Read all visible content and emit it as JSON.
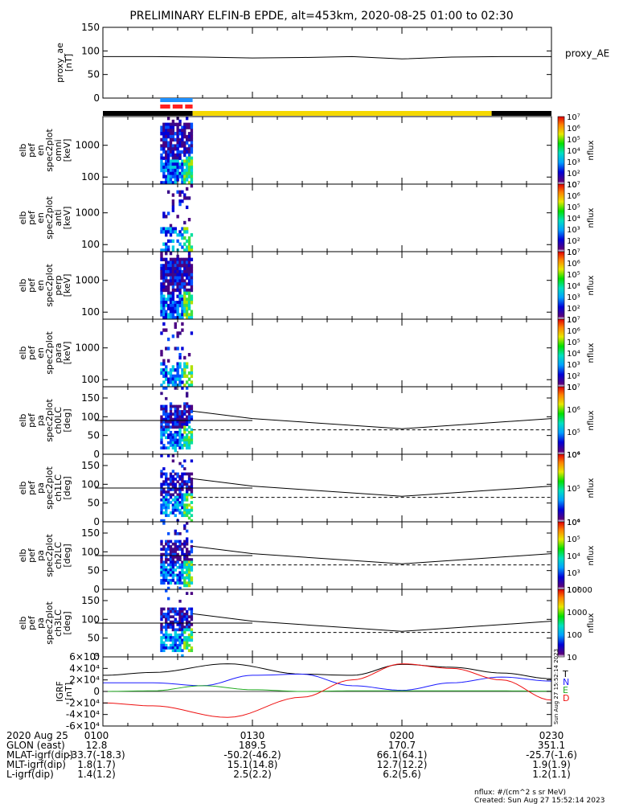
{
  "title": "PRELIMINARY ELFIN-B EPDE, alt=453km, 2020-08-25 01:00 to 02:30",
  "colors": {
    "blue": "#1e90ff",
    "red": "#ff2020",
    "yellow": "#f5d800",
    "black": "#000000",
    "mag_T": "#000000",
    "mag_N": "#1a1aff",
    "mag_E": "#22aa22",
    "mag_D": "#ee1111"
  },
  "chart_data": [
    {
      "type": "line",
      "name": "proxy_ae",
      "ylabel_lines": [
        "proxy_ae",
        "[nT]"
      ],
      "legend": "proxy_AE",
      "ylim": [
        0,
        150
      ],
      "yticks": [
        "0",
        "50",
        "100",
        "150"
      ],
      "x_minutes": [
        0,
        10,
        20,
        30,
        40,
        50,
        60,
        70,
        80,
        90
      ],
      "y": [
        88,
        88,
        87,
        85,
        86,
        88,
        83,
        87,
        88,
        88
      ]
    },
    {
      "type": "bar-strip",
      "name": "status_bars",
      "rows": [
        {
          "segments": [
            {
              "start": 11.5,
              "end": 18,
              "color": "blue"
            }
          ]
        },
        {
          "segments": [
            {
              "start": 11.5,
              "end": 13.5,
              "color": "red"
            },
            {
              "start": 14,
              "end": 16,
              "color": "red"
            },
            {
              "start": 16.5,
              "end": 18,
              "color": "red"
            }
          ]
        },
        {
          "segments": [
            {
              "start": 0,
              "end": 18,
              "color": "black"
            },
            {
              "start": 18,
              "end": 78,
              "color": "yellow"
            },
            {
              "start": 78,
              "end": 90,
              "color": "black"
            }
          ]
        }
      ]
    },
    {
      "type": "heatmap",
      "name": "elb_pef_en_spec2plot_omni",
      "ylabel_lines": [
        "elb",
        "pef",
        "en",
        "spec2plot",
        "omni",
        "[keV]"
      ],
      "yscale": "log",
      "ylim": [
        60,
        8000
      ],
      "yticks": [
        "100",
        "1000"
      ],
      "x_range_minutes": [
        11.5,
        18
      ],
      "colorbar": {
        "label": "nflux",
        "scale": "log",
        "ticks": [
          "10",
          "10²",
          "10³",
          "10⁴",
          "10⁵",
          "10⁶",
          "10⁷"
        ]
      }
    },
    {
      "type": "heatmap",
      "name": "elb_pef_en_spec2plot_anti",
      "ylabel_lines": [
        "elb",
        "pef",
        "en",
        "spec2plot",
        "anti",
        "[keV]"
      ],
      "yscale": "log",
      "ylim": [
        60,
        8000
      ],
      "yticks": [
        "100",
        "1000"
      ],
      "x_range_minutes": [
        11.5,
        18
      ],
      "colorbar": {
        "label": "nflux",
        "scale": "log",
        "ticks": [
          "10",
          "10²",
          "10³",
          "10⁴",
          "10⁵",
          "10⁶",
          "10⁷"
        ]
      }
    },
    {
      "type": "heatmap",
      "name": "elb_pef_en_spec2plot_perp",
      "ylabel_lines": [
        "elb",
        "pef",
        "en",
        "spec2plot",
        "perp",
        "[keV]"
      ],
      "yscale": "log",
      "ylim": [
        60,
        8000
      ],
      "yticks": [
        "100",
        "1000"
      ],
      "x_range_minutes": [
        11.5,
        18
      ],
      "colorbar": {
        "label": "nflux",
        "scale": "log",
        "ticks": [
          "10",
          "10²",
          "10³",
          "10⁴",
          "10⁵",
          "10⁶",
          "10⁷"
        ]
      }
    },
    {
      "type": "heatmap",
      "name": "elb_pef_en_spec2plot_para",
      "ylabel_lines": [
        "elb",
        "pef",
        "en",
        "spec2plot",
        "para",
        "[keV]"
      ],
      "yscale": "log",
      "ylim": [
        60,
        8000
      ],
      "yticks": [
        "100",
        "1000"
      ],
      "x_range_minutes": [
        11.5,
        18
      ],
      "colorbar": {
        "label": "nflux",
        "scale": "log",
        "ticks": [
          "10",
          "10²",
          "10³",
          "10⁴",
          "10⁵",
          "10⁶",
          "10⁷"
        ]
      }
    },
    {
      "type": "heatmap",
      "name": "elb_pef_pa_spec2plot_ch0LC",
      "ylabel_lines": [
        "elb",
        "pef",
        "pa",
        "spec2plot",
        "ch0LC",
        "[deg]"
      ],
      "ylim": [
        0,
        180
      ],
      "yticks": [
        "0",
        "50",
        "100",
        "150"
      ],
      "x_range_minutes": [
        11.5,
        18
      ],
      "colorbar": {
        "label": "nflux",
        "scale": "log",
        "ticks": [
          "10⁴",
          "10⁵",
          "10⁶",
          "10⁷"
        ]
      },
      "loss_cone_solid": {
        "x_minutes": [
          18,
          30,
          60,
          90
        ],
        "y": [
          115,
          95,
          68,
          95
        ]
      },
      "loss_cone_dashed": {
        "x_minutes": [
          18,
          90
        ],
        "y": [
          65,
          65
        ]
      },
      "hline": 90
    },
    {
      "type": "heatmap",
      "name": "elb_pef_pa_spec2plot_ch1LC",
      "ylabel_lines": [
        "elb",
        "pef",
        "pa",
        "spec2plot",
        "ch1LC",
        "[deg]"
      ],
      "ylim": [
        0,
        180
      ],
      "yticks": [
        "0",
        "50",
        "100",
        "150"
      ],
      "x_range_minutes": [
        11.5,
        18
      ],
      "colorbar": {
        "label": "nflux",
        "scale": "log",
        "ticks": [
          "10⁴",
          "10⁵",
          "10⁶"
        ]
      },
      "loss_cone_solid": {
        "x_minutes": [
          18,
          30,
          60,
          90
        ],
        "y": [
          115,
          95,
          68,
          95
        ]
      },
      "loss_cone_dashed": {
        "x_minutes": [
          18,
          90
        ],
        "y": [
          65,
          65
        ]
      },
      "hline": 90
    },
    {
      "type": "heatmap",
      "name": "elb_pef_pa_spec2plot_ch2LC",
      "ylabel_lines": [
        "elb",
        "pef",
        "pa",
        "spec2plot",
        "ch2LC",
        "[deg]"
      ],
      "ylim": [
        0,
        180
      ],
      "yticks": [
        "0",
        "50",
        "100",
        "150"
      ],
      "x_range_minutes": [
        11.5,
        18
      ],
      "colorbar": {
        "label": "nflux",
        "scale": "log",
        "ticks": [
          "10²",
          "10³",
          "10⁴",
          "10⁵",
          "10⁶"
        ]
      },
      "loss_cone_solid": {
        "x_minutes": [
          18,
          30,
          60,
          90
        ],
        "y": [
          115,
          95,
          68,
          95
        ]
      },
      "loss_cone_dashed": {
        "x_minutes": [
          18,
          90
        ],
        "y": [
          65,
          65
        ]
      },
      "hline": 90
    },
    {
      "type": "heatmap",
      "name": "elb_pef_pa_spec2plot_ch3LC",
      "ylabel_lines": [
        "elb",
        "pef",
        "pa",
        "spec2plot",
        "ch3LC",
        "[deg]"
      ],
      "ylim": [
        0,
        180
      ],
      "yticks": [
        "0",
        "50",
        "100",
        "150"
      ],
      "x_range_minutes": [
        11.5,
        18
      ],
      "colorbar": {
        "label": "nflux",
        "scale": "log",
        "ticks": [
          "10",
          "100",
          "1000",
          "10000"
        ]
      },
      "loss_cone_solid": {
        "x_minutes": [
          18,
          30,
          60,
          90
        ],
        "y": [
          115,
          95,
          68,
          95
        ]
      },
      "loss_cone_dashed": {
        "x_minutes": [
          18,
          90
        ],
        "y": [
          65,
          65
        ]
      },
      "hline": 90
    },
    {
      "type": "line",
      "name": "IGRF",
      "ylabel_lines": [
        "IGRF",
        "[nT]"
      ],
      "ylim": [
        -60000,
        60000
      ],
      "yticks": [
        "-6×10⁴",
        "-4×10⁴",
        "-2×10⁴",
        "0",
        "2×10⁴",
        "4×10⁴",
        "6×10⁴"
      ],
      "series": [
        {
          "name": "T",
          "color": "mag_T",
          "x_minutes": [
            0,
            10,
            25,
            40,
            50,
            60,
            70,
            80,
            90
          ],
          "y": [
            28000,
            33000,
            48000,
            30000,
            28000,
            47000,
            42000,
            32000,
            22000
          ]
        },
        {
          "name": "N",
          "color": "mag_N",
          "x_minutes": [
            0,
            10,
            20,
            30,
            40,
            50,
            60,
            70,
            80,
            90
          ],
          "y": [
            15000,
            15000,
            10000,
            28000,
            30000,
            10000,
            2000,
            15000,
            25000,
            18000
          ]
        },
        {
          "name": "E",
          "color": "mag_E",
          "x_minutes": [
            0,
            10,
            20,
            30,
            40,
            50,
            60,
            70,
            80,
            90
          ],
          "y": [
            0,
            1000,
            10000,
            3000,
            0,
            1000,
            1000,
            1000,
            1000,
            500
          ]
        },
        {
          "name": "D",
          "color": "mag_D",
          "x_minutes": [
            0,
            10,
            25,
            40,
            50,
            60,
            70,
            80,
            90
          ],
          "y": [
            -20000,
            -25000,
            -45000,
            -10000,
            20000,
            48000,
            40000,
            20000,
            -15000
          ]
        }
      ],
      "annotation": "Sun Aug 27 15:52:14 2023"
    }
  ],
  "xaxis": {
    "tick_minutes": [
      0,
      30,
      60,
      90
    ],
    "tick_labels": [
      "0100",
      "0130",
      "0200",
      "0230"
    ],
    "rows": [
      {
        "label": "2020 Aug 25",
        "values": [
          "0100",
          "0130",
          "0200",
          "0230"
        ]
      },
      {
        "label": "GLON (east)",
        "values": [
          "12.8",
          "189.5",
          "170.7",
          "351.1"
        ]
      },
      {
        "label": "MLAT-igrf(dip)",
        "values": [
          "-33.7(-18.3)",
          "-50.2(-46.2)",
          "66.1(64.1)",
          "-25.7(-1.6)"
        ]
      },
      {
        "label": "MLT-igrf(dip)",
        "values": [
          "1.8(1.7)",
          "15.1(14.8)",
          "12.7(12.2)",
          "1.9(1.9)"
        ]
      },
      {
        "label": "L-igrf(dip)",
        "values": [
          "1.4(1.2)",
          "2.5(2.2)",
          "6.2(5.6)",
          "1.2(1.1)"
        ]
      }
    ]
  },
  "footer": {
    "line1": "nflux: #/(cm^2 s sr MeV)",
    "line2": "Created: Sun Aug 27 15:52:14 2023"
  }
}
